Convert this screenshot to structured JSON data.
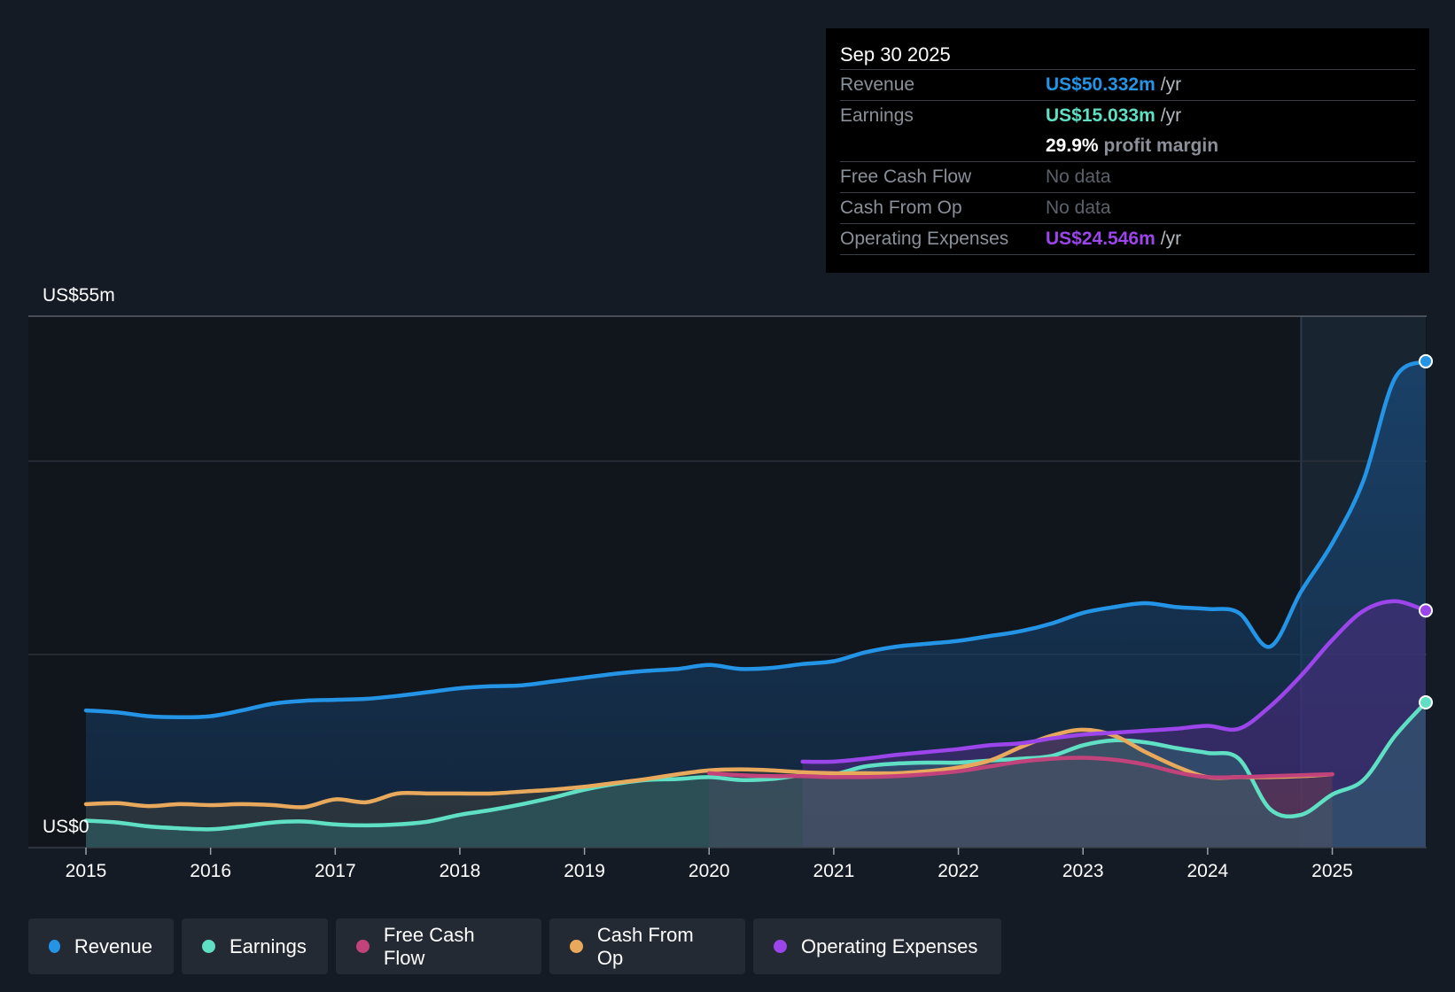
{
  "chart_data": {
    "type": "area",
    "title": "",
    "ylabel_top": "US$55m",
    "ylabel_bottom": "US$0",
    "ylim": [
      0,
      55
    ],
    "xlim": [
      2015,
      2025.75
    ],
    "x_ticks": [
      "2015",
      "2016",
      "2017",
      "2018",
      "2019",
      "2020",
      "2021",
      "2022",
      "2023",
      "2024",
      "2025"
    ],
    "gridlines": [
      20,
      40
    ],
    "forecast_start": 2024.75,
    "series": [
      {
        "name": "Revenue",
        "color": "#2394e6",
        "x": [
          2015,
          2015.25,
          2015.5,
          2015.75,
          2016,
          2016.25,
          2016.5,
          2016.75,
          2017,
          2017.25,
          2017.5,
          2017.75,
          2018,
          2018.25,
          2018.5,
          2018.75,
          2019,
          2019.25,
          2019.5,
          2019.75,
          2020,
          2020.25,
          2020.5,
          2020.75,
          2021,
          2021.25,
          2021.5,
          2021.75,
          2022,
          2022.25,
          2022.5,
          2022.75,
          2023,
          2023.25,
          2023.5,
          2023.75,
          2024,
          2024.25,
          2024.5,
          2024.75,
          2025,
          2025.25,
          2025.5,
          2025.75
        ],
        "values": [
          14.2,
          14.0,
          13.6,
          13.5,
          13.6,
          14.2,
          14.9,
          15.2,
          15.3,
          15.4,
          15.7,
          16.1,
          16.5,
          16.7,
          16.8,
          17.2,
          17.6,
          18.0,
          18.3,
          18.5,
          18.9,
          18.5,
          18.6,
          19.0,
          19.3,
          20.2,
          20.8,
          21.1,
          21.4,
          21.9,
          22.4,
          23.2,
          24.3,
          24.9,
          25.3,
          24.9,
          24.7,
          24.3,
          20.8,
          26.5,
          31.5,
          38.0,
          48.5,
          50.332
        ]
      },
      {
        "name": "Earnings",
        "color": "#5fe0c4",
        "x": [
          2015,
          2015.25,
          2015.5,
          2015.75,
          2016,
          2016.25,
          2016.5,
          2016.75,
          2017,
          2017.25,
          2017.5,
          2017.75,
          2018,
          2018.25,
          2018.5,
          2018.75,
          2019,
          2019.25,
          2019.5,
          2019.75,
          2020,
          2020.25,
          2020.5,
          2020.75,
          2021,
          2021.25,
          2021.5,
          2021.75,
          2022,
          2022.25,
          2022.5,
          2022.75,
          2023,
          2023.25,
          2023.5,
          2023.75,
          2024,
          2024.25,
          2024.5,
          2024.75,
          2025,
          2025.25,
          2025.5,
          2025.75
        ],
        "values": [
          2.8,
          2.6,
          2.2,
          2.0,
          1.9,
          2.2,
          2.6,
          2.7,
          2.4,
          2.3,
          2.4,
          2.7,
          3.4,
          3.9,
          4.5,
          5.2,
          6.0,
          6.6,
          7.0,
          7.1,
          7.3,
          7.0,
          7.1,
          7.5,
          7.6,
          8.4,
          8.7,
          8.8,
          8.8,
          9.0,
          9.2,
          9.5,
          10.6,
          11.1,
          10.9,
          10.3,
          9.8,
          9.2,
          4.0,
          3.4,
          5.5,
          7.0,
          11.5,
          15.033
        ]
      },
      {
        "name": "Free Cash Flow",
        "color": "#c2437b",
        "x": [
          2020,
          2020.25,
          2020.5,
          2020.75,
          2021,
          2021.25,
          2021.5,
          2021.75,
          2022,
          2022.25,
          2022.5,
          2022.75,
          2023,
          2023.25,
          2023.5,
          2023.75,
          2024,
          2024.25,
          2024.5,
          2024.75,
          2025
        ],
        "values": [
          7.7,
          7.5,
          7.4,
          7.4,
          7.3,
          7.3,
          7.4,
          7.6,
          7.9,
          8.4,
          8.9,
          9.2,
          9.3,
          9.1,
          8.6,
          7.8,
          7.3,
          7.3,
          7.4,
          7.5,
          7.6
        ]
      },
      {
        "name": "Cash From Op",
        "color": "#e8a95c",
        "x": [
          2015,
          2015.25,
          2015.5,
          2015.75,
          2016,
          2016.25,
          2016.5,
          2016.75,
          2017,
          2017.25,
          2017.5,
          2017.75,
          2018,
          2018.25,
          2018.5,
          2018.75,
          2019,
          2019.25,
          2019.5,
          2019.75,
          2020,
          2020.25,
          2020.5,
          2020.75,
          2021,
          2021.25,
          2021.5,
          2021.75,
          2022,
          2022.25,
          2022.5,
          2022.75,
          2023,
          2023.25,
          2023.5,
          2023.75,
          2024,
          2024.25,
          2024.5,
          2024.75,
          2025
        ],
        "values": [
          4.5,
          4.6,
          4.3,
          4.5,
          4.4,
          4.5,
          4.4,
          4.2,
          5.0,
          4.7,
          5.6,
          5.6,
          5.6,
          5.6,
          5.8,
          6.0,
          6.3,
          6.7,
          7.1,
          7.6,
          8.0,
          8.1,
          8.0,
          7.8,
          7.7,
          7.7,
          7.7,
          7.9,
          8.3,
          9.0,
          10.4,
          11.6,
          12.2,
          11.6,
          9.9,
          8.4,
          7.3,
          7.3,
          7.3,
          7.4,
          7.6
        ]
      },
      {
        "name": "Operating Expenses",
        "color": "#9b45ea",
        "x": [
          2020.75,
          2021,
          2021.25,
          2021.5,
          2021.75,
          2022,
          2022.25,
          2022.5,
          2022.75,
          2023,
          2023.25,
          2023.5,
          2023.75,
          2024,
          2024.25,
          2024.5,
          2024.75,
          2025,
          2025.25,
          2025.5,
          2025.75
        ],
        "values": [
          8.9,
          8.9,
          9.2,
          9.6,
          9.9,
          10.2,
          10.6,
          10.8,
          11.3,
          11.7,
          11.9,
          12.1,
          12.3,
          12.6,
          12.3,
          14.6,
          17.8,
          21.5,
          24.5,
          25.5,
          24.546
        ]
      }
    ]
  },
  "tooltip": {
    "date": "Sep 30 2025",
    "revenue": {
      "label": "Revenue",
      "value": "US$50.332m",
      "unit": "/yr",
      "color": "#2394e6"
    },
    "earnings": {
      "label": "Earnings",
      "value": "US$15.033m",
      "unit": "/yr",
      "color": "#5fe0c4"
    },
    "margin": {
      "value": "29.9%",
      "text": "profit margin"
    },
    "fcf": {
      "label": "Free Cash Flow",
      "value": "No data"
    },
    "cfo": {
      "label": "Cash From Op",
      "value": "No data"
    },
    "opex": {
      "label": "Operating Expenses",
      "value": "US$24.546m",
      "unit": "/yr",
      "color": "#9b45ea"
    }
  },
  "legend": [
    {
      "label": "Revenue",
      "color": "#2394e6"
    },
    {
      "label": "Earnings",
      "color": "#5fe0c4"
    },
    {
      "label": "Free Cash Flow",
      "color": "#c2437b"
    },
    {
      "label": "Cash From Op",
      "color": "#e8a95c"
    },
    {
      "label": "Operating Expenses",
      "color": "#9b45ea"
    }
  ]
}
